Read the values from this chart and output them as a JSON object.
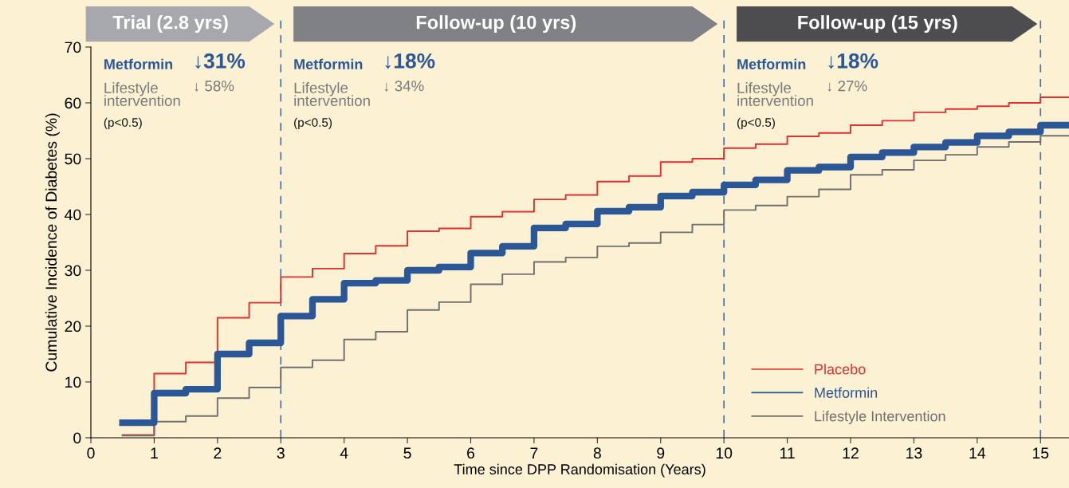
{
  "chart_data": {
    "type": "step",
    "xlabel": "Time since DPP Randomisation (Years)",
    "ylabel": "Cumulative Incidence of Diabetes (%)",
    "x": [
      0.5,
      1,
      1.5,
      2,
      2.5,
      3,
      3.5,
      4,
      4.5,
      5,
      5.5,
      6,
      6.5,
      7,
      7.5,
      8,
      8.5,
      9,
      9.5,
      10,
      10.5,
      11,
      11.5,
      12,
      12.5,
      13,
      13.5,
      14,
      14.5,
      15,
      15.45
    ],
    "series": [
      {
        "name": "Placebo",
        "color": "#e03131",
        "values": [
          0.5,
          11.5,
          13.5,
          21.5,
          24.2,
          28.8,
          30.3,
          33,
          34.4,
          37,
          37.5,
          39.6,
          40.5,
          42.7,
          43.5,
          45.9,
          46.9,
          49.4,
          50,
          51.9,
          52.6,
          54,
          54.6,
          56,
          56.8,
          58.3,
          58.9,
          59.4,
          60,
          61,
          61
        ]
      },
      {
        "name": "Metformin",
        "color": "#2b5797",
        "values": [
          2.7,
          8,
          8.7,
          15,
          17,
          21.8,
          24.8,
          27.7,
          28.2,
          30,
          30.6,
          33.1,
          34.3,
          37.6,
          38.3,
          40.6,
          41.3,
          43.3,
          44,
          45.3,
          46.2,
          47.9,
          48.5,
          50.3,
          51.1,
          52.1,
          52.9,
          54.1,
          54.8,
          56,
          56
        ]
      },
      {
        "name": "Lifestyle Intervention",
        "color": "#707070",
        "values": [
          0.4,
          2.9,
          3.9,
          7.1,
          9,
          12.6,
          13.9,
          17.6,
          19,
          22.9,
          24.3,
          27.5,
          29.3,
          31.5,
          32.3,
          34.3,
          34.9,
          36.8,
          38.2,
          40.8,
          41.6,
          43.2,
          44.5,
          47.1,
          48,
          49.7,
          50.7,
          52.1,
          53,
          54.1,
          54.1
        ]
      }
    ],
    "xlim": [
      0,
      15.45
    ],
    "xticks": [
      0,
      1,
      2,
      3,
      4,
      5,
      6,
      7,
      8,
      9,
      10,
      11,
      12,
      13,
      14,
      15
    ],
    "ylim": [
      0,
      70
    ],
    "yticks": [
      0,
      10,
      20,
      30,
      40,
      50,
      60,
      70
    ],
    "ref_lines": [
      {
        "axis": "x",
        "value": 3,
        "color": "#4a6fa5",
        "line_style": "dashed"
      },
      {
        "axis": "x",
        "value": 10,
        "color": "#4a6fa5",
        "line_style": "dashed"
      },
      {
        "axis": "x",
        "value": 15,
        "color": "#4a6fa5",
        "line_style": "dashed"
      }
    ],
    "annotations": [
      "Trial (2.8 yrs)",
      "Metformin",
      "↓31%",
      "Lifestyle\nintervention",
      "↓ 58%",
      "(p<0.5)",
      "Follow-up (10 yrs)",
      "Metformin",
      "↓18%",
      "Lifestyle\nintervention",
      "↓ 34%",
      "(p<0.5)",
      "Follow-up (15 yrs)",
      "Metformin",
      "↓18%",
      "Lifestyle\nintervention",
      "↓ 27%",
      "(p<0.5)"
    ],
    "legend": "bottom right",
    "grid": false,
    "line_style": "solid",
    "marker": "none"
  }
}
